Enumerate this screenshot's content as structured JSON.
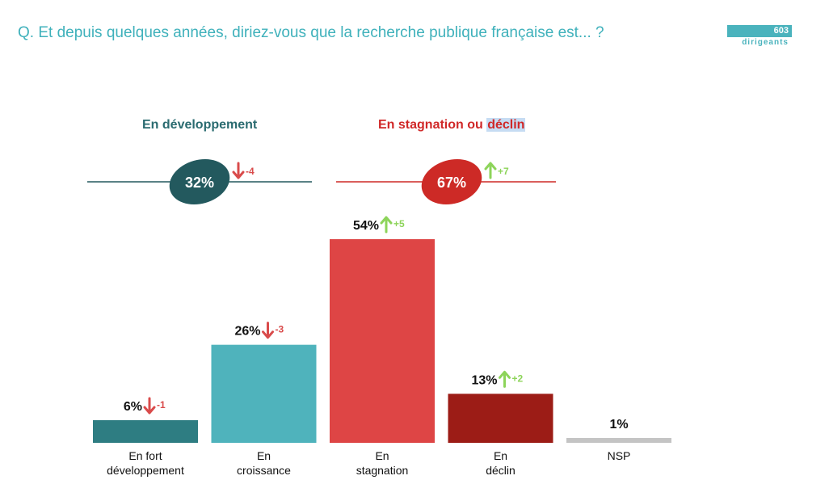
{
  "header": {
    "question": "Q. Et depuis quelques années, diriez-vous que la recherche publique française est... ?",
    "sample_count": "603",
    "sample_label": "dirigeants"
  },
  "groups": [
    {
      "title": "En développement",
      "highlight": "",
      "value": "32%",
      "delta": "-4",
      "trend": "down",
      "color": "#23595e"
    },
    {
      "title": "En stagnation ou ",
      "highlight": "déclin",
      "value": "67%",
      "delta": "+7",
      "trend": "up",
      "color": "#cd2a26"
    }
  ],
  "colors": {
    "up": "#8dd45a",
    "down": "#d94b4b",
    "nsp": "#c4c4c4"
  },
  "chart_data": {
    "type": "bar",
    "categories": [
      [
        "En fort",
        "développement"
      ],
      [
        "En",
        "croissance"
      ],
      [
        "En",
        "stagnation"
      ],
      [
        "En",
        "déclin"
      ],
      [
        "NSP"
      ]
    ],
    "values": [
      6,
      26,
      54,
      13,
      1
    ],
    "labels": [
      "6%",
      "26%",
      "54%",
      "13%",
      "1%"
    ],
    "deltas": [
      "-1",
      "-3",
      "+5",
      "+2",
      ""
    ],
    "trends": [
      "down",
      "down",
      "up",
      "up",
      ""
    ],
    "colors": [
      "#2e7d82",
      "#4fb3bc",
      "#de4545",
      "#9c1c16",
      "#c4c4c4"
    ],
    "ylim": [
      0,
      54
    ]
  }
}
